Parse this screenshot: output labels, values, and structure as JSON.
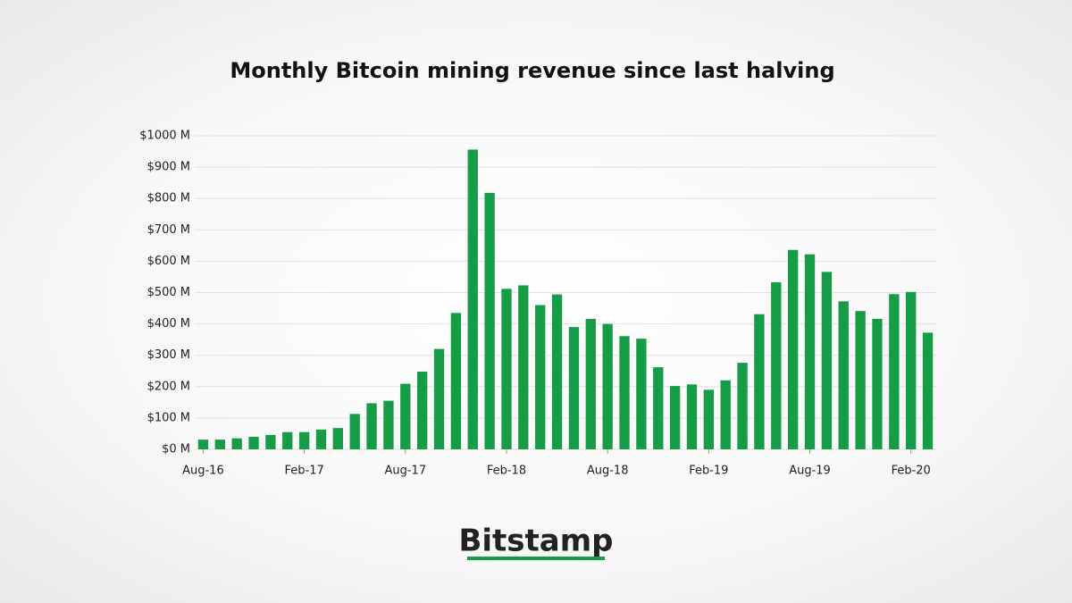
{
  "chart_data": {
    "type": "bar",
    "title": "Monthly Bitcoin mining revenue since last halving",
    "categories": [
      "Aug-16",
      null,
      null,
      null,
      null,
      null,
      "Feb-17",
      null,
      null,
      null,
      null,
      null,
      "Aug-17",
      null,
      null,
      null,
      null,
      null,
      "Feb-18",
      null,
      null,
      null,
      null,
      null,
      "Aug-18",
      null,
      null,
      null,
      null,
      null,
      "Feb-19",
      null,
      null,
      null,
      null,
      null,
      "Aug-19",
      null,
      null,
      null,
      null,
      null,
      "Feb-20",
      null
    ],
    "values": [
      31,
      31,
      35,
      40,
      46,
      55,
      55,
      63,
      68,
      113,
      147,
      155,
      209,
      248,
      320,
      435,
      956,
      818,
      512,
      523,
      460,
      494,
      390,
      416,
      400,
      361,
      353,
      262,
      202,
      207,
      190,
      220,
      276,
      431,
      533,
      636,
      622,
      566,
      472,
      441,
      416,
      495,
      502,
      372
    ],
    "color": "#169c45",
    "ylim": [
      0,
      1000
    ],
    "yticks": [
      {
        "value": 0,
        "label": "$0 M"
      },
      {
        "value": 100,
        "label": "$100 M"
      },
      {
        "value": 200,
        "label": "$200 M"
      },
      {
        "value": 300,
        "label": "$300 M"
      },
      {
        "value": 400,
        "label": "$400 M"
      },
      {
        "value": 500,
        "label": "$500 M"
      },
      {
        "value": 600,
        "label": "$600 M"
      },
      {
        "value": 700,
        "label": "$700 M"
      },
      {
        "value": 800,
        "label": "$800 M"
      },
      {
        "value": 900,
        "label": "$900 M"
      },
      {
        "value": 1000,
        "label": "$1000 M"
      }
    ],
    "grid": true
  },
  "brand": "Bitstamp"
}
